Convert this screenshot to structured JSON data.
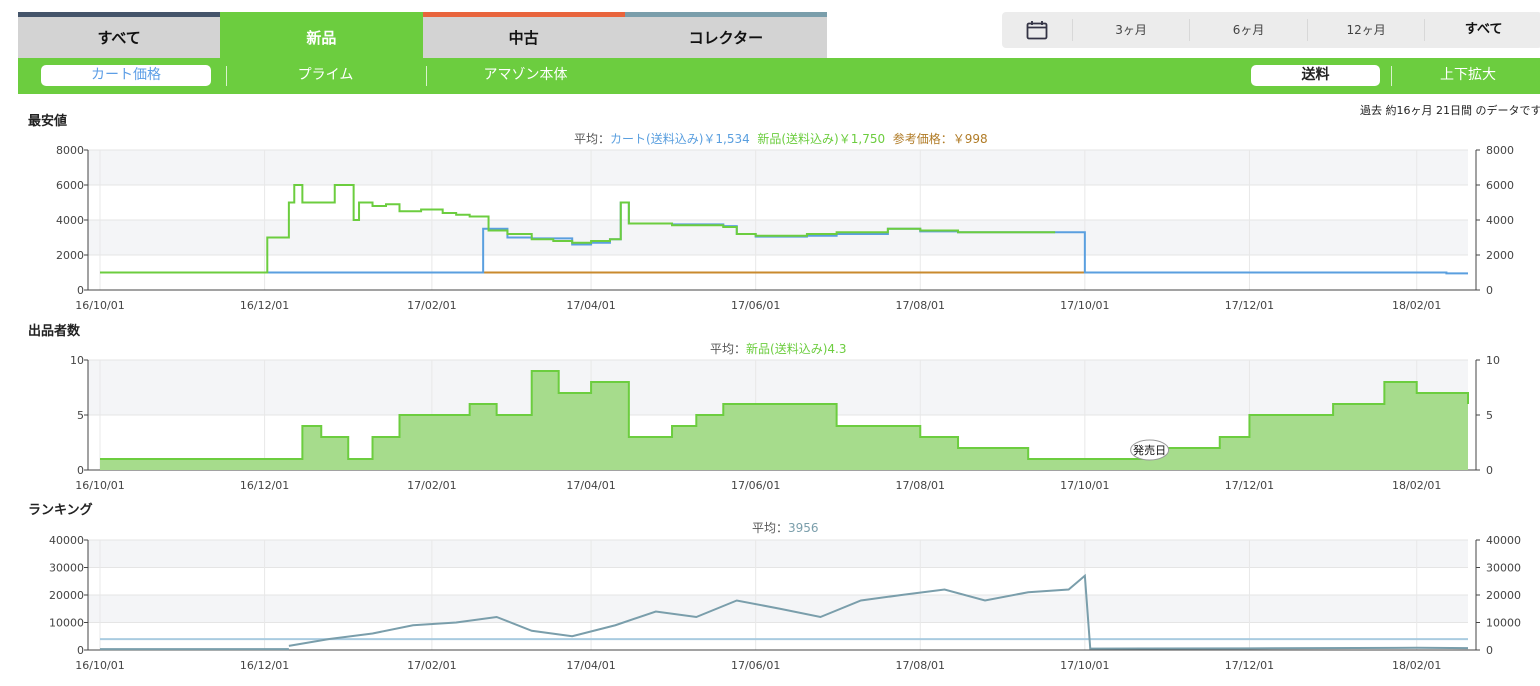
{
  "condition_tabs": [
    {
      "label": "すべて",
      "stripe": "#44546a",
      "active": false
    },
    {
      "label": "新品",
      "stripe": "#6ccd3f",
      "active": true
    },
    {
      "label": "中古",
      "stripe": "#e8643c",
      "active": false
    },
    {
      "label": "コレクター",
      "stripe": "#7a9eab",
      "active": false
    }
  ],
  "range": {
    "calendar_icon": "calendar-icon",
    "options": [
      "3ヶ月",
      "6ヶ月",
      "12ヶ月",
      "すべて"
    ],
    "selected": "すべて"
  },
  "toolbar": {
    "cart": "カート価格",
    "prime": "プライム",
    "amazon": "アマゾン本体",
    "shipping": "送料",
    "zoom": "上下拡大"
  },
  "colors": {
    "green": "#6ccd3f",
    "blue": "#5a9fdf",
    "orange": "#c98a2e",
    "rank": "#7a9eab",
    "rank_avg": "#a9cbe0"
  },
  "price": {
    "title": "最安値",
    "period_note": "過去 約16ヶ月 21日間 のデータです",
    "avg_prefix": "平均：",
    "avg_cart": "カート(送料込み)￥1,534",
    "avg_new": "新品(送料込み)￥1,750",
    "avg_ref": "参考価格：￥998"
  },
  "sellers": {
    "title": "出品者数",
    "avg_prefix": "平均：",
    "avg_new": "新品(送料込み)4.3",
    "release_label": "発売日"
  },
  "ranking": {
    "title": "ランキング",
    "avg_prefix": "平均：",
    "avg_value": "3956"
  },
  "chart_data": [
    {
      "type": "line",
      "title": "最安値",
      "x_ticks": [
        "16/10/01",
        "16/12/01",
        "17/02/01",
        "17/04/01",
        "17/06/01",
        "17/08/01",
        "17/10/01",
        "17/12/01",
        "18/02/01"
      ],
      "ylim": [
        0,
        8000
      ],
      "y_ticks": [
        0,
        2000,
        4000,
        6000,
        8000
      ],
      "series": [
        {
          "name": "新品(送料込み)",
          "color": "#6ccd3f",
          "x": [
            "16/10/01",
            "16/12/01",
            "16/12/02",
            "16/12/10",
            "16/12/12",
            "16/12/15",
            "16/12/20",
            "16/12/27",
            "17/01/03",
            "17/01/05",
            "17/01/10",
            "17/01/15",
            "17/01/20",
            "17/01/28",
            "17/02/05",
            "17/02/10",
            "17/02/15",
            "17/02/22",
            "17/03/01",
            "17/03/10",
            "17/03/18",
            "17/03/25",
            "17/04/01",
            "17/04/08",
            "17/04/12",
            "17/04/15",
            "17/05/01",
            "17/05/20",
            "17/05/25",
            "17/06/01",
            "17/06/20",
            "17/07/01",
            "17/07/10",
            "17/07/20",
            "17/08/01",
            "17/08/15",
            "17/09/01",
            "17/09/20"
          ],
          "y": [
            1000,
            1000,
            3000,
            5000,
            6000,
            5000,
            5000,
            6000,
            4000,
            5000,
            4800,
            4900,
            4500,
            4600,
            4400,
            4300,
            4200,
            3400,
            3200,
            2900,
            2800,
            2700,
            2800,
            2900,
            5000,
            3800,
            3700,
            3600,
            3200,
            3100,
            3200,
            3300,
            3300,
            3500,
            3400,
            3300,
            3300,
            3300
          ]
        },
        {
          "name": "カート(送料込み)",
          "color": "#5a9fdf",
          "x": [
            "16/10/01",
            "16/12/01",
            "17/02/20",
            "17/03/01",
            "17/03/10",
            "17/03/25",
            "17/04/01",
            "17/04/08",
            "17/04/12",
            "17/04/15",
            "17/05/01",
            "17/05/20",
            "17/05/25",
            "17/06/01",
            "17/06/20",
            "17/07/01",
            "17/07/20",
            "17/08/01",
            "17/08/15",
            "17/09/20",
            "17/10/01",
            "17/12/01",
            "18/01/20",
            "18/02/12",
            "18/02/20"
          ],
          "y": [
            1000,
            1000,
            3500,
            3000,
            2950,
            2600,
            2700,
            2900,
            5000,
            3800,
            3750,
            3650,
            3200,
            3050,
            3100,
            3200,
            3500,
            3350,
            3300,
            3300,
            1000,
            1000,
            1000,
            950,
            950
          ]
        },
        {
          "name": "参考価格",
          "color": "#c98a2e",
          "x": [
            "16/10/01",
            "17/10/01"
          ],
          "y": [
            998,
            998
          ]
        }
      ]
    },
    {
      "type": "area",
      "title": "出品者数",
      "x_ticks": [
        "16/10/01",
        "16/12/01",
        "17/02/01",
        "17/04/01",
        "17/06/01",
        "17/08/01",
        "17/10/01",
        "17/12/01",
        "18/02/01"
      ],
      "ylim": [
        0,
        10
      ],
      "y_ticks": [
        0,
        5,
        10
      ],
      "series": [
        {
          "name": "新品(送料込み)",
          "color": "#6ccd3f",
          "x": [
            "16/10/01",
            "16/12/10",
            "16/12/15",
            "16/12/22",
            "17/01/01",
            "17/01/10",
            "17/01/20",
            "17/02/01",
            "17/02/15",
            "17/02/25",
            "17/03/10",
            "17/03/20",
            "17/04/01",
            "17/04/15",
            "17/05/01",
            "17/05/10",
            "17/05/20",
            "17/06/01",
            "17/07/01",
            "17/07/15",
            "17/08/01",
            "17/08/15",
            "17/09/10",
            "17/10/01",
            "17/10/15",
            "17/10/25",
            "17/11/10",
            "17/11/20",
            "17/12/01",
            "17/12/15",
            "18/01/01",
            "18/01/20",
            "18/02/01",
            "18/02/20"
          ],
          "y": [
            1,
            1,
            4,
            3,
            1,
            3,
            5,
            5,
            6,
            5,
            9,
            7,
            8,
            3,
            4,
            5,
            6,
            6,
            4,
            4,
            3,
            2,
            1,
            1,
            1,
            2,
            2,
            3,
            5,
            5,
            6,
            8,
            7,
            6
          ]
        }
      ]
    },
    {
      "type": "line",
      "title": "ランキング",
      "x_ticks": [
        "16/10/01",
        "16/12/01",
        "17/02/01",
        "17/04/01",
        "17/06/01",
        "17/08/01",
        "17/10/01",
        "17/12/01",
        "18/02/01"
      ],
      "ylim": [
        0,
        40000
      ],
      "y_ticks": [
        0,
        10000,
        20000,
        30000,
        40000
      ],
      "average": 3956,
      "series": [
        {
          "name": "ランキング",
          "color": "#7a9eab",
          "x": [
            "16/12/10",
            "16/12/25",
            "17/01/10",
            "17/01/25",
            "17/02/10",
            "17/02/25",
            "17/03/10",
            "17/03/25",
            "17/04/10",
            "17/04/25",
            "17/05/10",
            "17/05/25",
            "17/06/10",
            "17/06/25",
            "17/07/10",
            "17/07/25",
            "17/08/10",
            "17/08/25",
            "17/09/10",
            "17/09/25",
            "17/10/01",
            "17/10/03",
            "17/12/01",
            "18/02/01",
            "18/02/20"
          ],
          "y": [
            1500,
            4000,
            6000,
            9000,
            10000,
            12000,
            7000,
            5000,
            9000,
            14000,
            12000,
            18000,
            15000,
            12000,
            18000,
            20000,
            22000,
            18000,
            21000,
            22000,
            27000,
            500,
            600,
            800,
            700
          ]
        }
      ]
    }
  ]
}
